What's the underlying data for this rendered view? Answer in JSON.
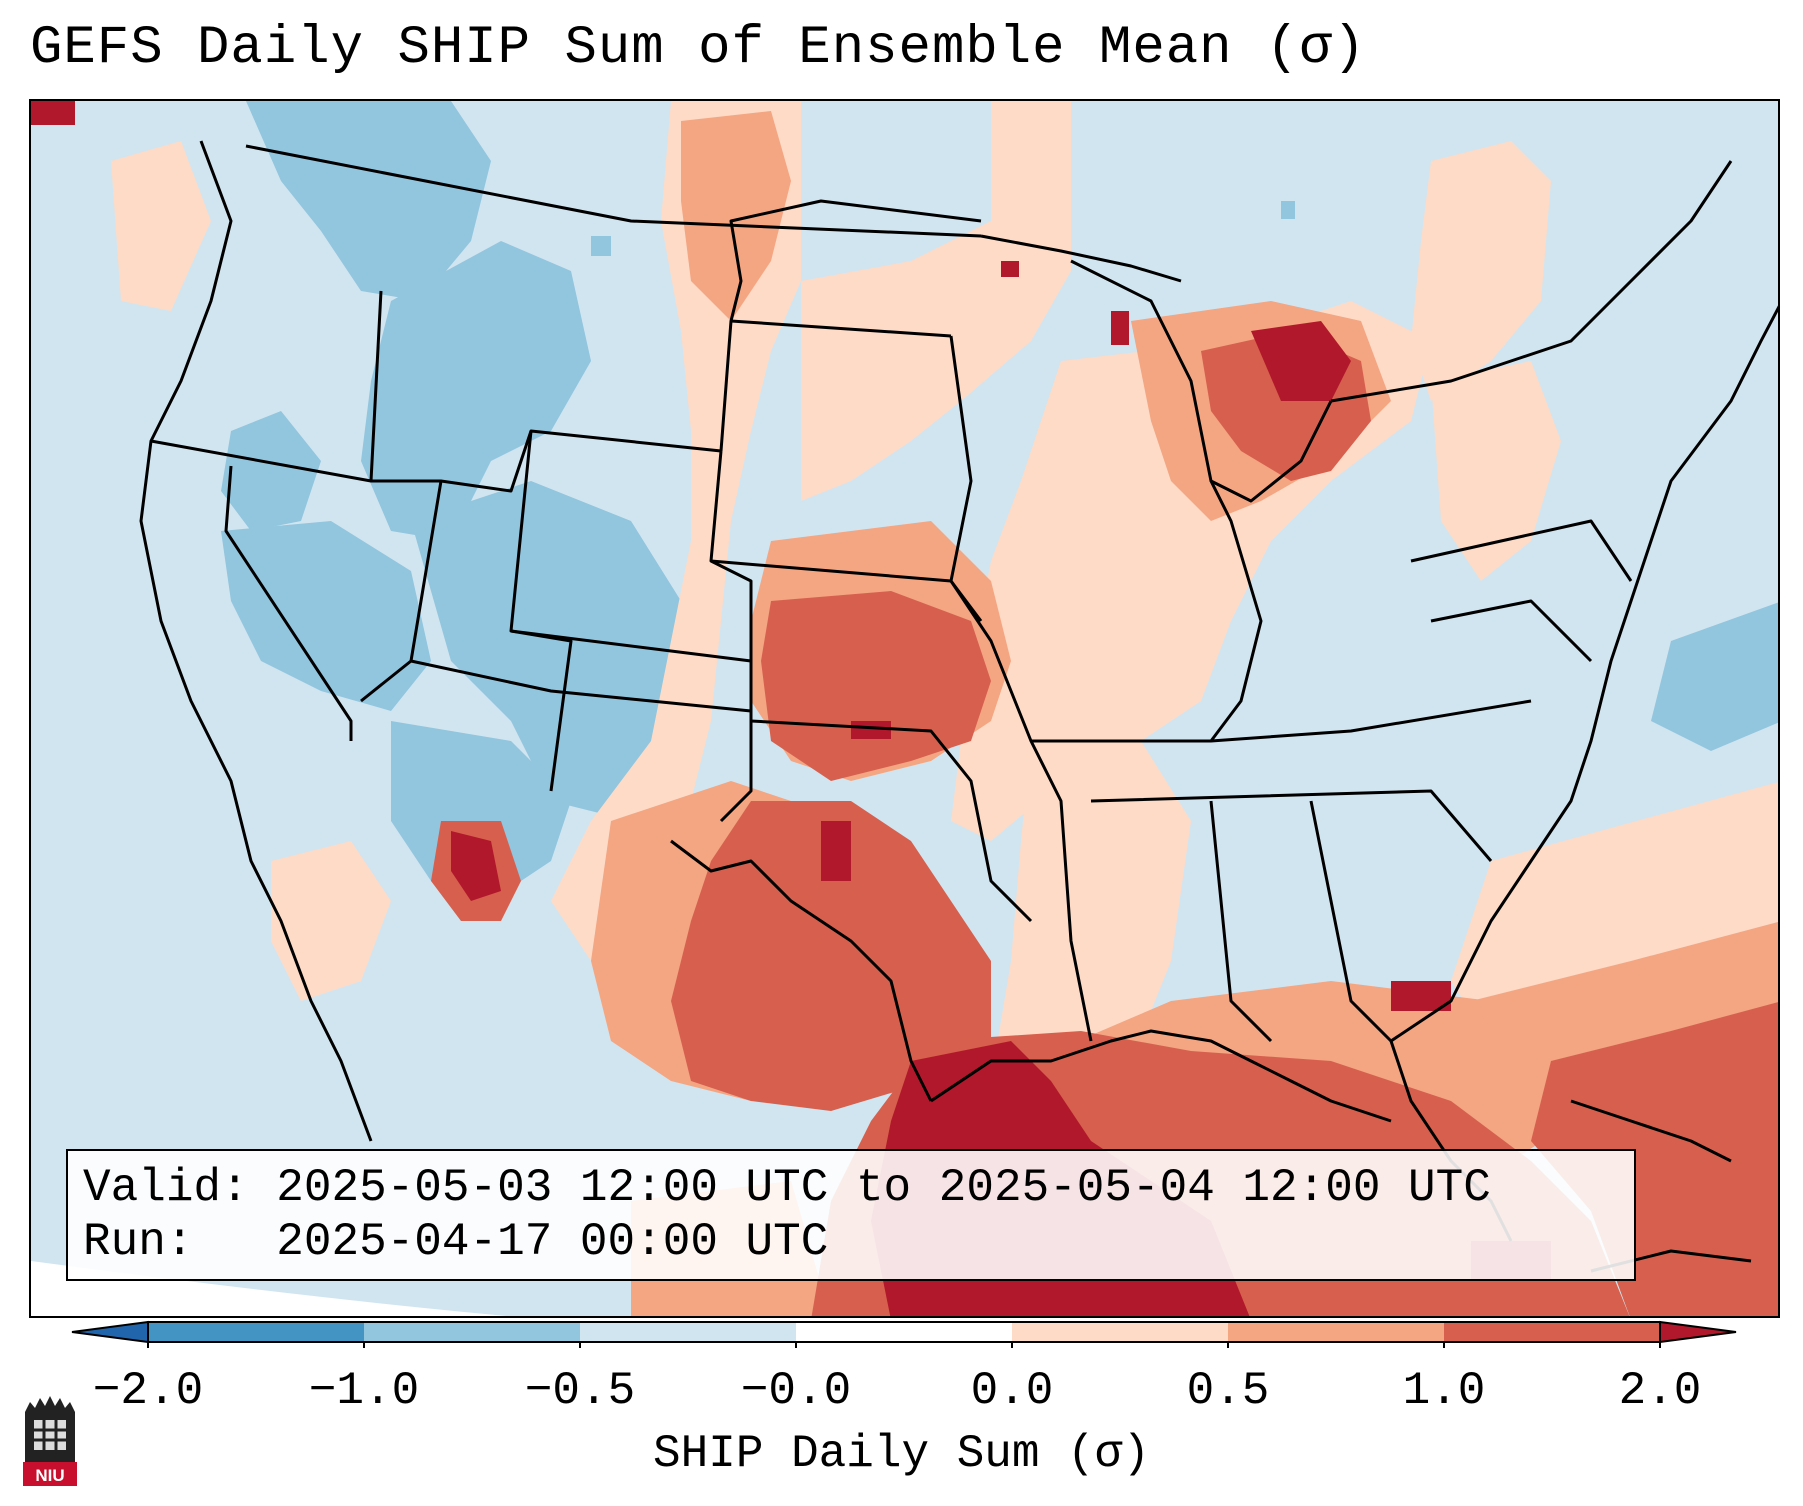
{
  "title": "GEFS Daily SHIP Sum of Ensemble Mean (σ)",
  "info": {
    "valid_label": "Valid:",
    "valid_value": "2025-05-03 12:00 UTC to 2025-05-04 12:00 UTC",
    "run_label": "Run:",
    "run_value": "2025-04-17 00:00 UTC"
  },
  "colorbar": {
    "label": "SHIP Daily Sum (σ)",
    "ticks": [
      "−2.0",
      "−1.0",
      "−0.5",
      "−0.0",
      "0.0",
      "0.5",
      "1.0",
      "2.0"
    ],
    "colors": [
      "#2166ac",
      "#4393c3",
      "#92c5de",
      "#d1e5f0",
      "#ffffff",
      "#fddbc7",
      "#f4a582",
      "#d6604d",
      "#b2182b"
    ],
    "extend": "both"
  },
  "logo": {
    "text": "NIU"
  }
}
